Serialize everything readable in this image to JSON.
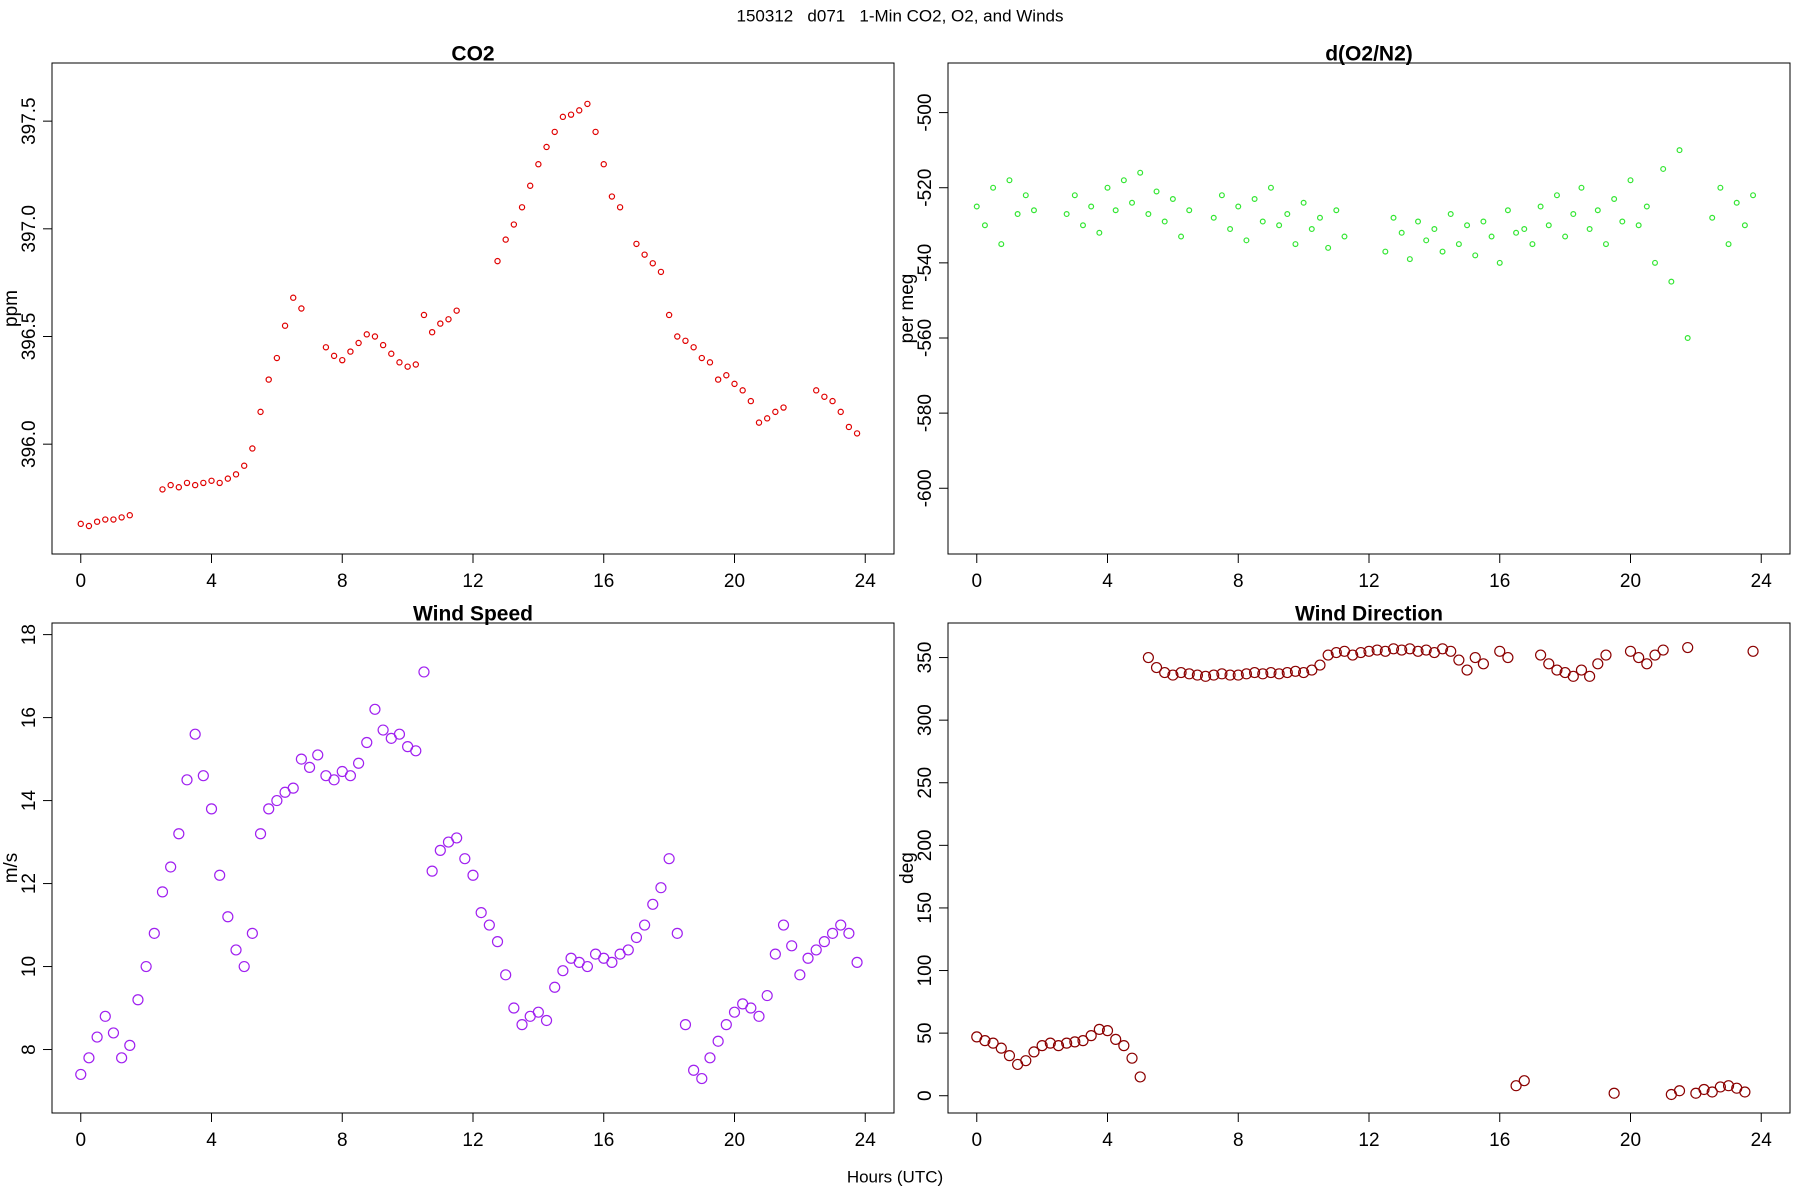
{
  "title": "150312   d071   1-Min CO2, O2, and Winds",
  "xlabel": "Hours (UTC)",
  "chart_data": [
    {
      "type": "scatter",
      "title": "CO2",
      "ylabel": "ppm",
      "color": "#e00000",
      "xlim": [
        -0.88,
        24.88
      ],
      "xticks": [
        0,
        4,
        8,
        12,
        16,
        20,
        24
      ],
      "ylim": [
        395.49,
        397.77
      ],
      "yticks": [
        {
          "value": 396,
          "label": "396.0"
        },
        {
          "value": 396.5,
          "label": "396.5"
        },
        {
          "value": 397,
          "label": "397.0"
        },
        {
          "value": 397.5,
          "label": "397.5"
        }
      ],
      "x": [
        0,
        0.25,
        0.5,
        0.75,
        1,
        1.25,
        1.5,
        1.75,
        2,
        2.25,
        2.5,
        2.75,
        3,
        3.25,
        3.5,
        3.75,
        4,
        4.25,
        4.5,
        4.75,
        5,
        5.25,
        5.5,
        5.75,
        6,
        6.25,
        6.5,
        6.75,
        7,
        7.25,
        7.5,
        7.75,
        8,
        8.25,
        8.5,
        8.75,
        9,
        9.25,
        9.5,
        9.75,
        10,
        10.25,
        10.5,
        10.75,
        11,
        11.25,
        11.5,
        11.75,
        12,
        12.25,
        12.5,
        12.75,
        13,
        13.25,
        13.5,
        13.75,
        14,
        14.25,
        14.5,
        14.75,
        15,
        15.25,
        15.5,
        15.75,
        16,
        16.25,
        16.5,
        16.75,
        17,
        17.25,
        17.5,
        17.75,
        18,
        18.25,
        18.5,
        18.75,
        19,
        19.25,
        19.5,
        19.75,
        20,
        20.25,
        20.5,
        20.75,
        21,
        21.25,
        21.5,
        21.75,
        22,
        22.25,
        22.5,
        22.75,
        23,
        23.25,
        23.5,
        23.75
      ],
      "values": [
        395.63,
        395.62,
        395.64,
        395.65,
        395.65,
        395.66,
        395.67,
        null,
        null,
        null,
        395.79,
        395.81,
        395.8,
        395.82,
        395.81,
        395.82,
        395.83,
        395.82,
        395.84,
        395.86,
        395.9,
        395.98,
        396.15,
        396.3,
        396.4,
        396.55,
        396.68,
        396.63,
        null,
        null,
        396.45,
        396.41,
        396.39,
        396.43,
        396.47,
        396.51,
        396.5,
        396.46,
        396.42,
        396.38,
        396.36,
        396.37,
        396.6,
        396.52,
        396.56,
        396.58,
        396.62,
        null,
        null,
        null,
        null,
        396.85,
        396.95,
        397.02,
        397.1,
        397.2,
        397.3,
        397.38,
        397.45,
        397.52,
        397.53,
        397.55,
        397.58,
        397.45,
        397.3,
        397.15,
        397.1,
        null,
        396.93,
        396.88,
        396.84,
        396.8,
        396.6,
        396.5,
        396.48,
        396.45,
        396.4,
        396.38,
        396.3,
        396.32,
        396.28,
        396.25,
        396.2,
        396.1,
        396.12,
        396.15,
        396.17,
        null,
        null,
        null,
        396.25,
        396.22,
        396.2,
        396.15,
        396.08,
        396.05
      ]
    },
    {
      "type": "scatter",
      "title": "d(O2/N2)",
      "ylabel": "per meg",
      "color": "#33e633",
      "xlim": [
        -0.88,
        24.88
      ],
      "xticks": [
        0,
        4,
        8,
        12,
        16,
        20,
        24
      ],
      "ylim": [
        -617.5,
        -486.8
      ],
      "yticks": [
        -600,
        -580,
        -560,
        -540,
        -520,
        -500
      ],
      "x": [
        0,
        0.25,
        0.5,
        0.75,
        1,
        1.25,
        1.5,
        1.75,
        2,
        2.25,
        2.5,
        2.75,
        3,
        3.25,
        3.5,
        3.75,
        4,
        4.25,
        4.5,
        4.75,
        5,
        5.25,
        5.5,
        5.75,
        6,
        6.25,
        6.5,
        6.75,
        7,
        7.25,
        7.5,
        7.75,
        8,
        8.25,
        8.5,
        8.75,
        9,
        9.25,
        9.5,
        9.75,
        10,
        10.25,
        10.5,
        10.75,
        11,
        11.25,
        11.5,
        11.75,
        12,
        12.25,
        12.5,
        12.75,
        13,
        13.25,
        13.5,
        13.75,
        14,
        14.25,
        14.5,
        14.75,
        15,
        15.25,
        15.5,
        15.75,
        16,
        16.25,
        16.5,
        16.75,
        17,
        17.25,
        17.5,
        17.75,
        18,
        18.25,
        18.5,
        18.75,
        19,
        19.25,
        19.5,
        19.75,
        20,
        20.25,
        20.5,
        20.75,
        21,
        21.25,
        21.5,
        21.75,
        22,
        22.25,
        22.5,
        22.75,
        23,
        23.25,
        23.5,
        23.75
      ],
      "values": [
        -525,
        -530,
        -520,
        -535,
        -518,
        -527,
        -522,
        -526,
        null,
        null,
        null,
        -527,
        -522,
        -530,
        -525,
        -532,
        -520,
        -526,
        -518,
        -524,
        -516,
        -527,
        -521,
        -529,
        -523,
        -533,
        -526,
        null,
        null,
        -528,
        -522,
        -531,
        -525,
        -534,
        -523,
        -529,
        -520,
        -530,
        -527,
        -535,
        -524,
        -531,
        -528,
        -536,
        -526,
        -533,
        null,
        null,
        null,
        null,
        -537,
        -528,
        -532,
        -539,
        -529,
        -534,
        -531,
        -537,
        -527,
        -535,
        -530,
        -538,
        -529,
        -533,
        -540,
        -526,
        -532,
        -531,
        -535,
        -525,
        -530,
        -522,
        -533,
        -527,
        -520,
        -531,
        -526,
        -535,
        -523,
        -529,
        -518,
        -530,
        -525,
        -540,
        -515,
        -545,
        -510,
        -560,
        null,
        null,
        -528,
        -520,
        -535,
        -524,
        -530,
        -522
      ]
    },
    {
      "type": "scatter",
      "title": "Wind Speed",
      "ylabel": "m/s",
      "color": "#a020f0",
      "xlim": [
        -0.88,
        24.88
      ],
      "xticks": [
        0,
        4,
        8,
        12,
        16,
        20,
        24
      ],
      "ylim": [
        6.47,
        18.28
      ],
      "yticks": [
        8,
        10,
        12,
        14,
        16,
        18
      ],
      "x": [
        0,
        0.25,
        0.5,
        0.75,
        1,
        1.25,
        1.5,
        1.75,
        2,
        2.25,
        2.5,
        2.75,
        3,
        3.25,
        3.5,
        3.75,
        4,
        4.25,
        4.5,
        4.75,
        5,
        5.25,
        5.5,
        5.75,
        6,
        6.25,
        6.5,
        6.75,
        7,
        7.25,
        7.5,
        7.75,
        8,
        8.25,
        8.5,
        8.75,
        9,
        9.25,
        9.5,
        9.75,
        10,
        10.25,
        10.5,
        10.75,
        11,
        11.25,
        11.5,
        11.75,
        12,
        12.25,
        12.5,
        12.75,
        13,
        13.25,
        13.5,
        13.75,
        14,
        14.25,
        14.5,
        14.75,
        15,
        15.25,
        15.5,
        15.75,
        16,
        16.25,
        16.5,
        16.75,
        17,
        17.25,
        17.5,
        17.75,
        18,
        18.25,
        18.5,
        18.75,
        19,
        19.25,
        19.5,
        19.75,
        20,
        20.25,
        20.5,
        20.75,
        21,
        21.25,
        21.5,
        21.75,
        22,
        22.25,
        22.5,
        22.75,
        23,
        23.25,
        23.5,
        23.75
      ],
      "values": [
        7.4,
        7.8,
        8.3,
        8.8,
        8.4,
        7.8,
        8.1,
        9.2,
        10.0,
        10.8,
        11.8,
        12.4,
        13.2,
        14.5,
        15.6,
        14.6,
        13.8,
        12.2,
        11.2,
        10.4,
        10.0,
        10.8,
        13.2,
        13.8,
        14.0,
        14.2,
        14.3,
        15.0,
        14.8,
        15.1,
        14.6,
        14.5,
        14.7,
        14.6,
        14.9,
        15.4,
        16.2,
        15.7,
        15.5,
        15.6,
        15.3,
        15.2,
        17.1,
        12.3,
        12.8,
        13.0,
        13.1,
        12.6,
        12.2,
        11.3,
        11.0,
        10.6,
        9.8,
        9.0,
        8.6,
        8.8,
        8.9,
        8.7,
        9.5,
        9.9,
        10.2,
        10.1,
        10.0,
        10.3,
        10.2,
        10.1,
        10.3,
        10.4,
        10.7,
        11.0,
        11.5,
        11.9,
        12.6,
        10.8,
        8.6,
        7.5,
        7.3,
        7.8,
        8.2,
        8.6,
        8.9,
        9.1,
        9.0,
        8.8,
        9.3,
        10.3,
        11.0,
        10.5,
        9.8,
        10.2,
        10.4,
        10.6,
        10.8,
        11.0,
        10.8,
        10.1
      ]
    },
    {
      "type": "scatter",
      "title": "Wind Direction",
      "ylabel": "deg",
      "color": "#8b0000",
      "xlim": [
        -0.88,
        24.88
      ],
      "xticks": [
        0,
        4,
        8,
        12,
        16,
        20,
        24
      ],
      "ylim": [
        -13.8,
        377.6
      ],
      "yticks": [
        0,
        50,
        100,
        150,
        200,
        250,
        300,
        350
      ],
      "x": [
        0,
        0.25,
        0.5,
        0.75,
        1,
        1.25,
        1.5,
        1.75,
        2,
        2.25,
        2.5,
        2.75,
        3,
        3.25,
        3.5,
        3.75,
        4,
        4.25,
        4.5,
        4.75,
        5,
        5.25,
        5.5,
        5.75,
        6,
        6.25,
        6.5,
        6.75,
        7,
        7.25,
        7.5,
        7.75,
        8,
        8.25,
        8.5,
        8.75,
        9,
        9.25,
        9.5,
        9.75,
        10,
        10.25,
        10.5,
        10.75,
        11,
        11.25,
        11.5,
        11.75,
        12,
        12.25,
        12.5,
        12.75,
        13,
        13.25,
        13.5,
        13.75,
        14,
        14.25,
        14.5,
        14.75,
        15,
        15.25,
        15.5,
        15.75,
        16,
        16.25,
        16.5,
        16.75,
        17,
        17.25,
        17.5,
        17.75,
        18,
        18.25,
        18.5,
        18.75,
        19,
        19.25,
        19.5,
        19.75,
        20,
        20.25,
        20.5,
        20.75,
        21,
        21.25,
        21.5,
        21.75,
        22,
        22.25,
        22.5,
        22.75,
        23,
        23.25,
        23.5,
        23.75
      ],
      "values": [
        47,
        44,
        42,
        38,
        32,
        25,
        28,
        35,
        40,
        42,
        40,
        42,
        43,
        44,
        48,
        53,
        52,
        45,
        40,
        30,
        15,
        350,
        342,
        338,
        336,
        338,
        337,
        336,
        335,
        336,
        337,
        336,
        336,
        337,
        338,
        337,
        338,
        337,
        338,
        339,
        338,
        340,
        344,
        352,
        354,
        355,
        352,
        354,
        355,
        356,
        355,
        357,
        356,
        357,
        355,
        356,
        354,
        357,
        355,
        348,
        340,
        350,
        345,
        null,
        355,
        350,
        8,
        12,
        null,
        352,
        345,
        340,
        338,
        335,
        340,
        335,
        345,
        352,
        2,
        null,
        355,
        350,
        345,
        352,
        356,
        1,
        4,
        358,
        2,
        5,
        3,
        7,
        8,
        6,
        3,
        355
      ]
    }
  ]
}
